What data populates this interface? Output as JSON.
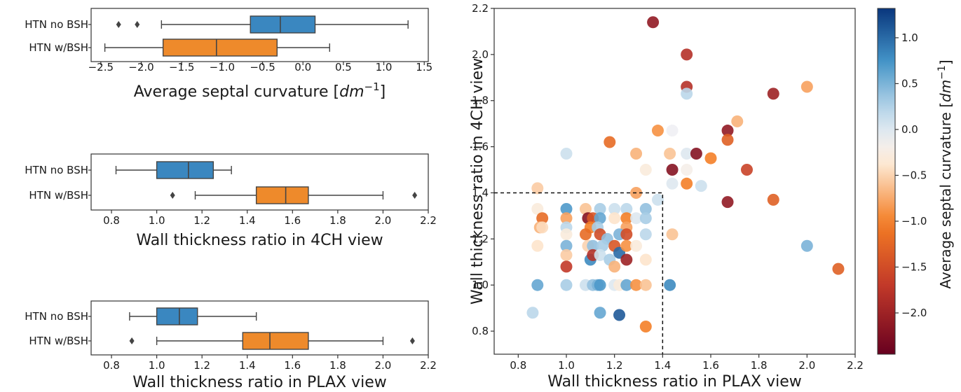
{
  "chart_data": [
    {
      "type": "boxplot",
      "orientation": "horizontal",
      "xlabel_text": "Average septal curvature [",
      "xlabel_unit": "dm",
      "xlabel_exp": "−1",
      "xlabel_close": "]",
      "xlim": [
        -2.62,
        1.55
      ],
      "xticks": [
        -2.5,
        -2.0,
        -1.5,
        -1.0,
        -0.5,
        0.0,
        0.5,
        1.0,
        1.5
      ],
      "xtick_labels": [
        "−2.5",
        "−2.0",
        "−1.5",
        "−1.0",
        "−0.5",
        "0.0",
        "0.5",
        "1.0",
        "1.5"
      ],
      "groups": [
        {
          "name": "HTN no BSH",
          "color": "#3a87c0",
          "whisker_low": -1.75,
          "q1": -0.65,
          "median": -0.28,
          "q3": 0.15,
          "whisker_high": 1.3,
          "outliers": [
            -2.28,
            -2.05
          ]
        },
        {
          "name": "HTN w/BSH",
          "color": "#ee8a2b",
          "whisker_low": -2.45,
          "q1": -1.73,
          "median": -1.07,
          "q3": -0.32,
          "whisker_high": 0.33,
          "outliers": []
        }
      ]
    },
    {
      "type": "boxplot",
      "orientation": "horizontal",
      "xlabel_text": "Wall thickness ratio in 4CH view",
      "xlim": [
        0.71,
        2.2
      ],
      "xticks": [
        0.8,
        1.0,
        1.2,
        1.4,
        1.6,
        1.8,
        2.0,
        2.2
      ],
      "xtick_labels": [
        "0.8",
        "1.0",
        "1.2",
        "1.4",
        "1.6",
        "1.8",
        "2.0",
        "2.2"
      ],
      "groups": [
        {
          "name": "HTN no BSH",
          "color": "#3a87c0",
          "whisker_low": 0.82,
          "q1": 1.0,
          "median": 1.14,
          "q3": 1.25,
          "whisker_high": 1.33,
          "outliers": []
        },
        {
          "name": "HTN w/BSH",
          "color": "#ee8a2b",
          "whisker_low": 1.17,
          "q1": 1.44,
          "median": 1.57,
          "q3": 1.67,
          "whisker_high": 2.0,
          "outliers": [
            1.07,
            2.14
          ]
        }
      ]
    },
    {
      "type": "boxplot",
      "orientation": "horizontal",
      "xlabel_text": "Wall thickness ratio in PLAX view",
      "xlim": [
        0.71,
        2.2
      ],
      "xticks": [
        0.8,
        1.0,
        1.2,
        1.4,
        1.6,
        1.8,
        2.0,
        2.2
      ],
      "xtick_labels": [
        "0.8",
        "1.0",
        "1.2",
        "1.4",
        "1.6",
        "1.8",
        "2.0",
        "2.2"
      ],
      "groups": [
        {
          "name": "HTN no BSH",
          "color": "#3a87c0",
          "whisker_low": 0.88,
          "q1": 1.0,
          "median": 1.1,
          "q3": 1.18,
          "whisker_high": 1.44,
          "outliers": []
        },
        {
          "name": "HTN w/BSH",
          "color": "#ee8a2b",
          "whisker_low": 1.0,
          "q1": 1.38,
          "median": 1.5,
          "q3": 1.67,
          "whisker_high": 2.0,
          "outliers": [
            0.89,
            2.13
          ]
        }
      ]
    },
    {
      "type": "scatter",
      "xlabel": "Wall thickness ratio in PLAX view",
      "ylabel": "Wall thickness ratio in 4CH view",
      "xlim": [
        0.7,
        2.2
      ],
      "ylim": [
        0.7,
        2.2
      ],
      "xticks": [
        0.8,
        1.0,
        1.2,
        1.4,
        1.6,
        1.8,
        2.0,
        2.2
      ],
      "xtick_labels": [
        "0.8",
        "1.0",
        "1.2",
        "1.4",
        "1.6",
        "1.8",
        "2.0",
        "2.2"
      ],
      "yticks": [
        0.8,
        1.0,
        1.2,
        1.4,
        1.6,
        1.8,
        2.0,
        2.2
      ],
      "ytick_labels": [
        "0.8",
        "1.0",
        "1.2",
        "1.4",
        "1.6",
        "1.8",
        "2.0",
        "2.2"
      ],
      "threshold_x": 1.4,
      "threshold_y": 1.4,
      "color_field": "Average septal curvature",
      "colormap": "diverging red-white-blue (RdBu)",
      "colorbar": {
        "label_text": "Average septal curvature [",
        "label_unit": "dm",
        "label_exp": "−1",
        "label_close": "]",
        "range": [
          -2.45,
          1.32
        ],
        "ticks": [
          -2.0,
          -1.5,
          -1.0,
          -0.5,
          0.0,
          0.5,
          1.0
        ],
        "tick_labels": [
          "−2.0",
          "−1.5",
          "−1.0",
          "−0.5",
          "0.0",
          "0.5",
          "1.0"
        ]
      },
      "points": [
        {
          "x": 1.36,
          "y": 2.14,
          "c": -2.1
        },
        {
          "x": 1.5,
          "y": 2.0,
          "c": -1.8
        },
        {
          "x": 1.5,
          "y": 1.86,
          "c": -1.8
        },
        {
          "x": 1.5,
          "y": 1.83,
          "c": 0.2
        },
        {
          "x": 1.86,
          "y": 1.83,
          "c": -2.0
        },
        {
          "x": 2.0,
          "y": 1.86,
          "c": -0.8
        },
        {
          "x": 1.71,
          "y": 1.71,
          "c": -0.7
        },
        {
          "x": 1.67,
          "y": 1.67,
          "c": -2.1
        },
        {
          "x": 1.67,
          "y": 1.63,
          "c": -1.3
        },
        {
          "x": 1.38,
          "y": 1.67,
          "c": -0.9
        },
        {
          "x": 1.44,
          "y": 1.67,
          "c": -0.1
        },
        {
          "x": 1.18,
          "y": 1.62,
          "c": -1.2
        },
        {
          "x": 1.5,
          "y": 1.57,
          "c": 0.0
        },
        {
          "x": 1.54,
          "y": 1.57,
          "c": -2.2
        },
        {
          "x": 1.43,
          "y": 1.57,
          "c": -0.6
        },
        {
          "x": 1.6,
          "y": 1.55,
          "c": -1.0
        },
        {
          "x": 1.0,
          "y": 1.57,
          "c": 0.1
        },
        {
          "x": 1.29,
          "y": 1.57,
          "c": -0.7
        },
        {
          "x": 1.44,
          "y": 1.5,
          "c": -2.2
        },
        {
          "x": 1.5,
          "y": 1.5,
          "c": -0.2
        },
        {
          "x": 1.33,
          "y": 1.5,
          "c": -0.3
        },
        {
          "x": 1.75,
          "y": 1.5,
          "c": -1.6
        },
        {
          "x": 1.44,
          "y": 1.44,
          "c": 0.0
        },
        {
          "x": 1.5,
          "y": 1.44,
          "c": -1.0
        },
        {
          "x": 1.56,
          "y": 1.43,
          "c": 0.1
        },
        {
          "x": 1.29,
          "y": 1.4,
          "c": -0.8
        },
        {
          "x": 1.67,
          "y": 1.36,
          "c": -2.1
        },
        {
          "x": 1.86,
          "y": 1.37,
          "c": -1.3
        },
        {
          "x": 0.88,
          "y": 1.42,
          "c": -0.55
        },
        {
          "x": 1.38,
          "y": 1.37,
          "c": 0.1
        },
        {
          "x": 0.88,
          "y": 1.33,
          "c": -0.3
        },
        {
          "x": 1.0,
          "y": 1.33,
          "c": 0.7
        },
        {
          "x": 1.08,
          "y": 1.33,
          "c": -0.6
        },
        {
          "x": 1.14,
          "y": 1.33,
          "c": 0.3
        },
        {
          "x": 1.2,
          "y": 1.33,
          "c": 0.1
        },
        {
          "x": 1.25,
          "y": 1.33,
          "c": 0.2
        },
        {
          "x": 1.33,
          "y": 1.33,
          "c": 0.4
        },
        {
          "x": 0.9,
          "y": 1.29,
          "c": -1.2
        },
        {
          "x": 1.0,
          "y": 1.29,
          "c": -0.8
        },
        {
          "x": 1.09,
          "y": 1.29,
          "c": -2.2
        },
        {
          "x": 1.11,
          "y": 1.29,
          "c": -1.4
        },
        {
          "x": 1.14,
          "y": 1.29,
          "c": 0.6
        },
        {
          "x": 1.2,
          "y": 1.29,
          "c": -0.4
        },
        {
          "x": 1.25,
          "y": 1.29,
          "c": -1.0
        },
        {
          "x": 1.29,
          "y": 1.29,
          "c": 0.0
        },
        {
          "x": 1.33,
          "y": 1.29,
          "c": 0.3
        },
        {
          "x": 0.89,
          "y": 1.25,
          "c": -0.7
        },
        {
          "x": 1.0,
          "y": 1.25,
          "c": 0.2
        },
        {
          "x": 1.1,
          "y": 1.25,
          "c": -1.0
        },
        {
          "x": 1.13,
          "y": 1.25,
          "c": 0.3
        },
        {
          "x": 1.25,
          "y": 1.25,
          "c": -0.8
        },
        {
          "x": 0.9,
          "y": 1.25,
          "c": -0.45
        },
        {
          "x": 1.0,
          "y": 1.22,
          "c": -0.3
        },
        {
          "x": 1.08,
          "y": 1.22,
          "c": -1.2
        },
        {
          "x": 1.14,
          "y": 1.22,
          "c": -1.5
        },
        {
          "x": 1.17,
          "y": 1.2,
          "c": 0.4
        },
        {
          "x": 1.22,
          "y": 1.22,
          "c": 0.5
        },
        {
          "x": 1.25,
          "y": 1.22,
          "c": -1.5
        },
        {
          "x": 1.33,
          "y": 1.22,
          "c": 0.2
        },
        {
          "x": 1.44,
          "y": 1.22,
          "c": -0.6
        },
        {
          "x": 0.88,
          "y": 1.17,
          "c": -0.4
        },
        {
          "x": 1.0,
          "y": 1.17,
          "c": 0.5
        },
        {
          "x": 1.09,
          "y": 1.17,
          "c": -0.5
        },
        {
          "x": 1.11,
          "y": 1.17,
          "c": 0.4
        },
        {
          "x": 1.15,
          "y": 1.17,
          "c": 0.3
        },
        {
          "x": 1.2,
          "y": 1.17,
          "c": -1.4
        },
        {
          "x": 1.22,
          "y": 1.14,
          "c": 1.0
        },
        {
          "x": 1.25,
          "y": 1.17,
          "c": -0.9
        },
        {
          "x": 1.29,
          "y": 1.17,
          "c": -0.3
        },
        {
          "x": 2.0,
          "y": 1.17,
          "c": 0.5
        },
        {
          "x": 1.0,
          "y": 1.13,
          "c": -0.55
        },
        {
          "x": 1.1,
          "y": 1.11,
          "c": 0.8
        },
        {
          "x": 1.11,
          "y": 1.13,
          "c": -1.8
        },
        {
          "x": 1.14,
          "y": 1.13,
          "c": 0.1
        },
        {
          "x": 1.18,
          "y": 1.11,
          "c": 0.3
        },
        {
          "x": 1.25,
          "y": 1.11,
          "c": -2.0
        },
        {
          "x": 1.33,
          "y": 1.11,
          "c": -0.4
        },
        {
          "x": 1.0,
          "y": 1.08,
          "c": -1.7
        },
        {
          "x": 1.2,
          "y": 1.08,
          "c": -0.7
        },
        {
          "x": 2.13,
          "y": 1.07,
          "c": -1.3
        },
        {
          "x": 0.88,
          "y": 1.0,
          "c": 0.6
        },
        {
          "x": 1.0,
          "y": 1.0,
          "c": 0.3
        },
        {
          "x": 1.08,
          "y": 1.0,
          "c": 0.1
        },
        {
          "x": 1.11,
          "y": 1.0,
          "c": 0.4
        },
        {
          "x": 1.13,
          "y": 1.0,
          "c": 0.5
        },
        {
          "x": 1.14,
          "y": 1.0,
          "c": 0.7
        },
        {
          "x": 1.2,
          "y": 1.0,
          "c": 0.0
        },
        {
          "x": 1.22,
          "y": 1.0,
          "c": -0.3
        },
        {
          "x": 1.25,
          "y": 1.0,
          "c": 0.6
        },
        {
          "x": 1.29,
          "y": 1.0,
          "c": -0.9
        },
        {
          "x": 1.33,
          "y": 1.0,
          "c": -0.6
        },
        {
          "x": 1.43,
          "y": 1.0,
          "c": 0.8
        },
        {
          "x": 0.86,
          "y": 0.88,
          "c": 0.2
        },
        {
          "x": 1.14,
          "y": 0.88,
          "c": 0.6
        },
        {
          "x": 1.22,
          "y": 0.87,
          "c": 1.1
        },
        {
          "x": 1.33,
          "y": 0.82,
          "c": -1.0
        }
      ]
    }
  ]
}
